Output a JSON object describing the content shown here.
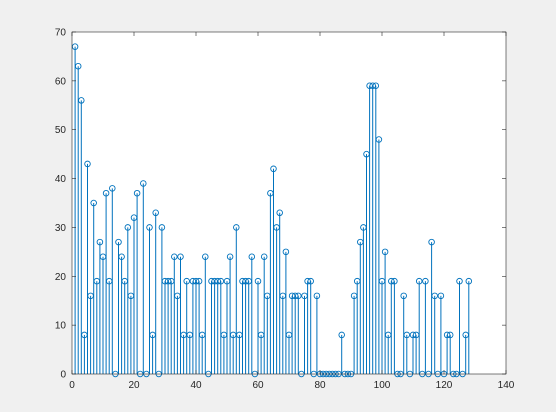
{
  "chart_data": {
    "type": "stem",
    "title": "",
    "xlabel": "",
    "ylabel": "",
    "xlim": [
      0,
      140
    ],
    "ylim": [
      0,
      70
    ],
    "xticks": [
      0,
      20,
      40,
      60,
      80,
      100,
      120,
      140
    ],
    "yticks": [
      0,
      10,
      20,
      30,
      40,
      50,
      60,
      70
    ],
    "grid": false,
    "legend": "none",
    "colors": {
      "series": "#0072bd",
      "axes": "#262626",
      "plot_bg": "#ffffff",
      "figure_bg": "#f0f0f0"
    },
    "x": [
      1,
      2,
      3,
      4,
      5,
      6,
      7,
      8,
      9,
      10,
      11,
      12,
      13,
      14,
      15,
      16,
      17,
      18,
      19,
      20,
      21,
      22,
      23,
      24,
      25,
      26,
      27,
      28,
      29,
      30,
      31,
      32,
      33,
      34,
      35,
      36,
      37,
      38,
      39,
      40,
      41,
      42,
      43,
      44,
      45,
      46,
      47,
      48,
      49,
      50,
      51,
      52,
      53,
      54,
      55,
      56,
      57,
      58,
      59,
      60,
      61,
      62,
      63,
      64,
      65,
      66,
      67,
      68,
      69,
      70,
      71,
      72,
      73,
      74,
      75,
      76,
      77,
      78,
      79,
      80,
      81,
      82,
      83,
      84,
      85,
      86,
      87,
      88,
      89,
      90,
      91,
      92,
      93,
      94,
      95,
      96,
      97,
      98,
      99,
      100,
      101,
      102,
      103,
      104,
      105,
      106,
      107,
      108,
      109,
      110,
      111,
      112,
      113,
      114,
      115,
      116,
      117,
      118,
      119,
      120,
      121,
      122,
      123,
      124,
      125,
      126,
      127,
      128
    ],
    "values": [
      67,
      63,
      56,
      8,
      43,
      16,
      35,
      19,
      27,
      24,
      37,
      19,
      38,
      0,
      27,
      24,
      19,
      30,
      16,
      32,
      37,
      0,
      39,
      0,
      30,
      8,
      33,
      0,
      30,
      19,
      19,
      19,
      24,
      16,
      24,
      8,
      19,
      8,
      19,
      19,
      19,
      8,
      24,
      0,
      19,
      19,
      19,
      19,
      8,
      19,
      24,
      8,
      30,
      8,
      19,
      19,
      19,
      24,
      0,
      19,
      8,
      24,
      16,
      37,
      42,
      30,
      33,
      16,
      25,
      8,
      16,
      16,
      16,
      0,
      16,
      19,
      19,
      0,
      16,
      0,
      0,
      0,
      0,
      0,
      0,
      0,
      8,
      0,
      0,
      0,
      16,
      19,
      27,
      30,
      45,
      59,
      59,
      59,
      48,
      19,
      25,
      8,
      19,
      19,
      0,
      0,
      16,
      8,
      0,
      8,
      8,
      19,
      0,
      19,
      0,
      27,
      16,
      0,
      16,
      0,
      8,
      8,
      0,
      0,
      19,
      0,
      8,
      19
    ]
  }
}
